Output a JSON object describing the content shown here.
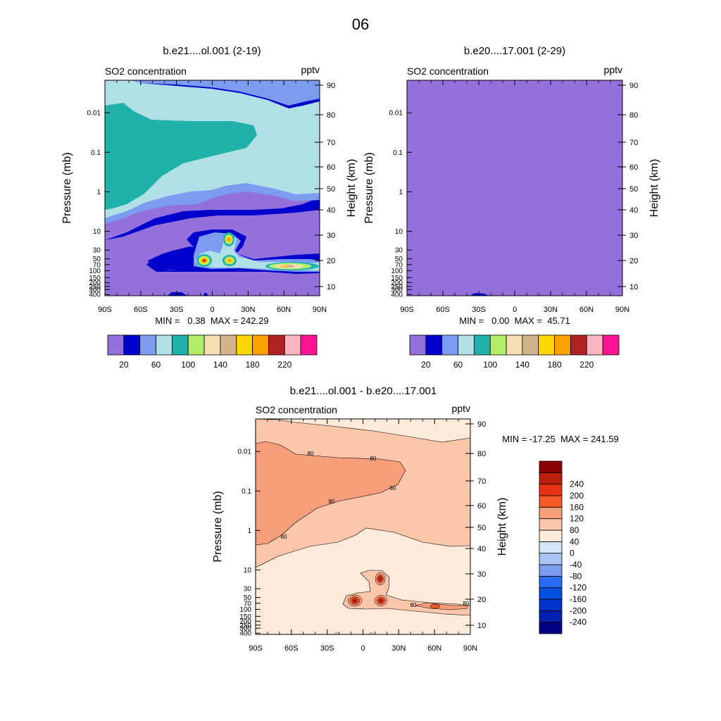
{
  "figure_title": "06",
  "panels": {
    "p1": {
      "title": "b.e21....ol.001 (2-19)",
      "left_title": "SO2 concentration",
      "units": "pptv",
      "ylabel": "Pressure (mb)",
      "ylabel_right": "Height (km)",
      "stats": "MIN =   0.38  MAX = 242.29"
    },
    "p2": {
      "title": "b.e20....17.001 (2-29)",
      "left_title": "SO2 concentration",
      "units": "pptv",
      "ylabel": "Pressure (mb)",
      "ylabel_right": "Height (km)",
      "stats": "MIN =   0.00  MAX =  45.71"
    },
    "p3": {
      "title": "b.e21....ol.001 - b.e20....17.001",
      "left_title": "SO2 concentration",
      "units": "pptv",
      "ylabel": "Pressure (mb)",
      "ylabel_right": "Height (km)",
      "stats": "MIN = -17.25  MAX = 241.59"
    }
  },
  "chart_data": [
    {
      "type": "contour",
      "panel": "p1",
      "x_ticks": [
        "90S",
        "60S",
        "30S",
        "0",
        "30N",
        "60N",
        "90N"
      ],
      "x_values": [
        -90,
        -60,
        -30,
        0,
        30,
        60,
        90
      ],
      "p_ticks": [
        "0.01",
        "0.1",
        "1",
        "10",
        "30",
        "50",
        "70",
        "100",
        "150",
        "200",
        "250",
        "300",
        "400"
      ],
      "p_values": [
        0.01,
        0.1,
        1,
        10,
        30,
        50,
        70,
        100,
        150,
        200,
        250,
        300,
        400
      ],
      "z_ticks": [
        "10",
        "20",
        "30",
        "40",
        "50",
        "60",
        "70",
        "80",
        "90"
      ],
      "z_values": [
        10,
        20,
        30,
        40,
        50,
        60,
        70,
        80,
        90
      ],
      "ylim": [
        0.0015,
        430
      ],
      "field_peaks": [
        {
          "lat": -5,
          "p": 68,
          "value": 240
        },
        {
          "lat": 15,
          "p": 68,
          "value": 220
        },
        {
          "lat": 15,
          "p": 20,
          "value": 200
        },
        {
          "lat": 65,
          "p": 90,
          "value": 160
        }
      ],
      "colorbar": {
        "colors": [
          "#9370db",
          "#0000cd",
          "#7b9cf0",
          "#b0e0e6",
          "#20b2aa",
          "#b3ee6a",
          "#f5deb3",
          "#d2b48c",
          "#ffd700",
          "#ff9f00",
          "#b22222",
          "#ffb6c1",
          "#ff1493"
        ],
        "labels": [
          "20",
          "60",
          "100",
          "140",
          "180",
          "220"
        ],
        "levels": [
          20,
          60,
          100,
          140,
          180,
          220
        ]
      }
    },
    {
      "type": "contour",
      "panel": "p2",
      "x_ticks": [
        "90S",
        "60S",
        "30S",
        "0",
        "30N",
        "60N",
        "90N"
      ],
      "x_values": [
        -90,
        -60,
        -30,
        0,
        30,
        60,
        90
      ],
      "p_ticks": [
        "0.01",
        "0.1",
        "1",
        "10",
        "30",
        "50",
        "70",
        "100",
        "150",
        "200",
        "250",
        "300",
        "400"
      ],
      "p_values": [
        0.01,
        0.1,
        1,
        10,
        30,
        50,
        70,
        100,
        150,
        200,
        250,
        300,
        400
      ],
      "z_ticks": [
        "10",
        "20",
        "30",
        "40",
        "50",
        "60",
        "70",
        "80",
        "90"
      ],
      "z_values": [
        10,
        20,
        30,
        40,
        50,
        60,
        70,
        80,
        90
      ],
      "ylim": [
        0.0015,
        430
      ],
      "field": "uniform below 20 pptv",
      "colorbar": {
        "colors": [
          "#9370db",
          "#0000cd",
          "#7b9cf0",
          "#b0e0e6",
          "#20b2aa",
          "#b3ee6a",
          "#f5deb3",
          "#d2b48c",
          "#ffd700",
          "#ff9f00",
          "#b22222",
          "#ffb6c1",
          "#ff1493"
        ],
        "labels": [
          "20",
          "60",
          "100",
          "140",
          "180",
          "220"
        ],
        "levels": [
          20,
          60,
          100,
          140,
          180,
          220
        ]
      }
    },
    {
      "type": "contour",
      "panel": "p3",
      "x_ticks": [
        "90S",
        "60S",
        "30S",
        "0",
        "30N",
        "60N",
        "90N"
      ],
      "x_values": [
        -90,
        -60,
        -30,
        0,
        30,
        60,
        90
      ],
      "p_ticks": [
        "0.01",
        "0.1",
        "1",
        "10",
        "30",
        "50",
        "70",
        "100",
        "150",
        "200",
        "250",
        "300",
        "400"
      ],
      "p_values": [
        0.01,
        0.1,
        1,
        10,
        30,
        50,
        70,
        100,
        150,
        200,
        250,
        300,
        400
      ],
      "z_ticks": [
        "10",
        "20",
        "30",
        "40",
        "50",
        "60",
        "70",
        "80",
        "90"
      ],
      "z_values": [
        10,
        20,
        30,
        40,
        50,
        60,
        70,
        80,
        90
      ],
      "ylim": [
        0.0015,
        430
      ],
      "contour_labels": [
        "80",
        "80",
        "80",
        "80",
        "80",
        "80",
        "80"
      ],
      "colorbar": {
        "colors": [
          "#000080",
          "#0020b0",
          "#0033cc",
          "#0050e0",
          "#2a6af5",
          "#7b9cf0",
          "#a9c4f5",
          "#d6e6fa",
          "#feead8",
          "#fcc6aa",
          "#f89e7a",
          "#fa5a28",
          "#e83315",
          "#bb1e0c",
          "#8b0000"
        ],
        "labels": [
          "240",
          "200",
          "160",
          "120",
          "80",
          "40",
          "0",
          "-40",
          "-80",
          "-120",
          "-160",
          "-200",
          "-240"
        ],
        "levels": [
          240,
          200,
          160,
          120,
          80,
          40,
          0,
          -40,
          -80,
          -120,
          -160,
          -200,
          -240
        ]
      }
    }
  ]
}
